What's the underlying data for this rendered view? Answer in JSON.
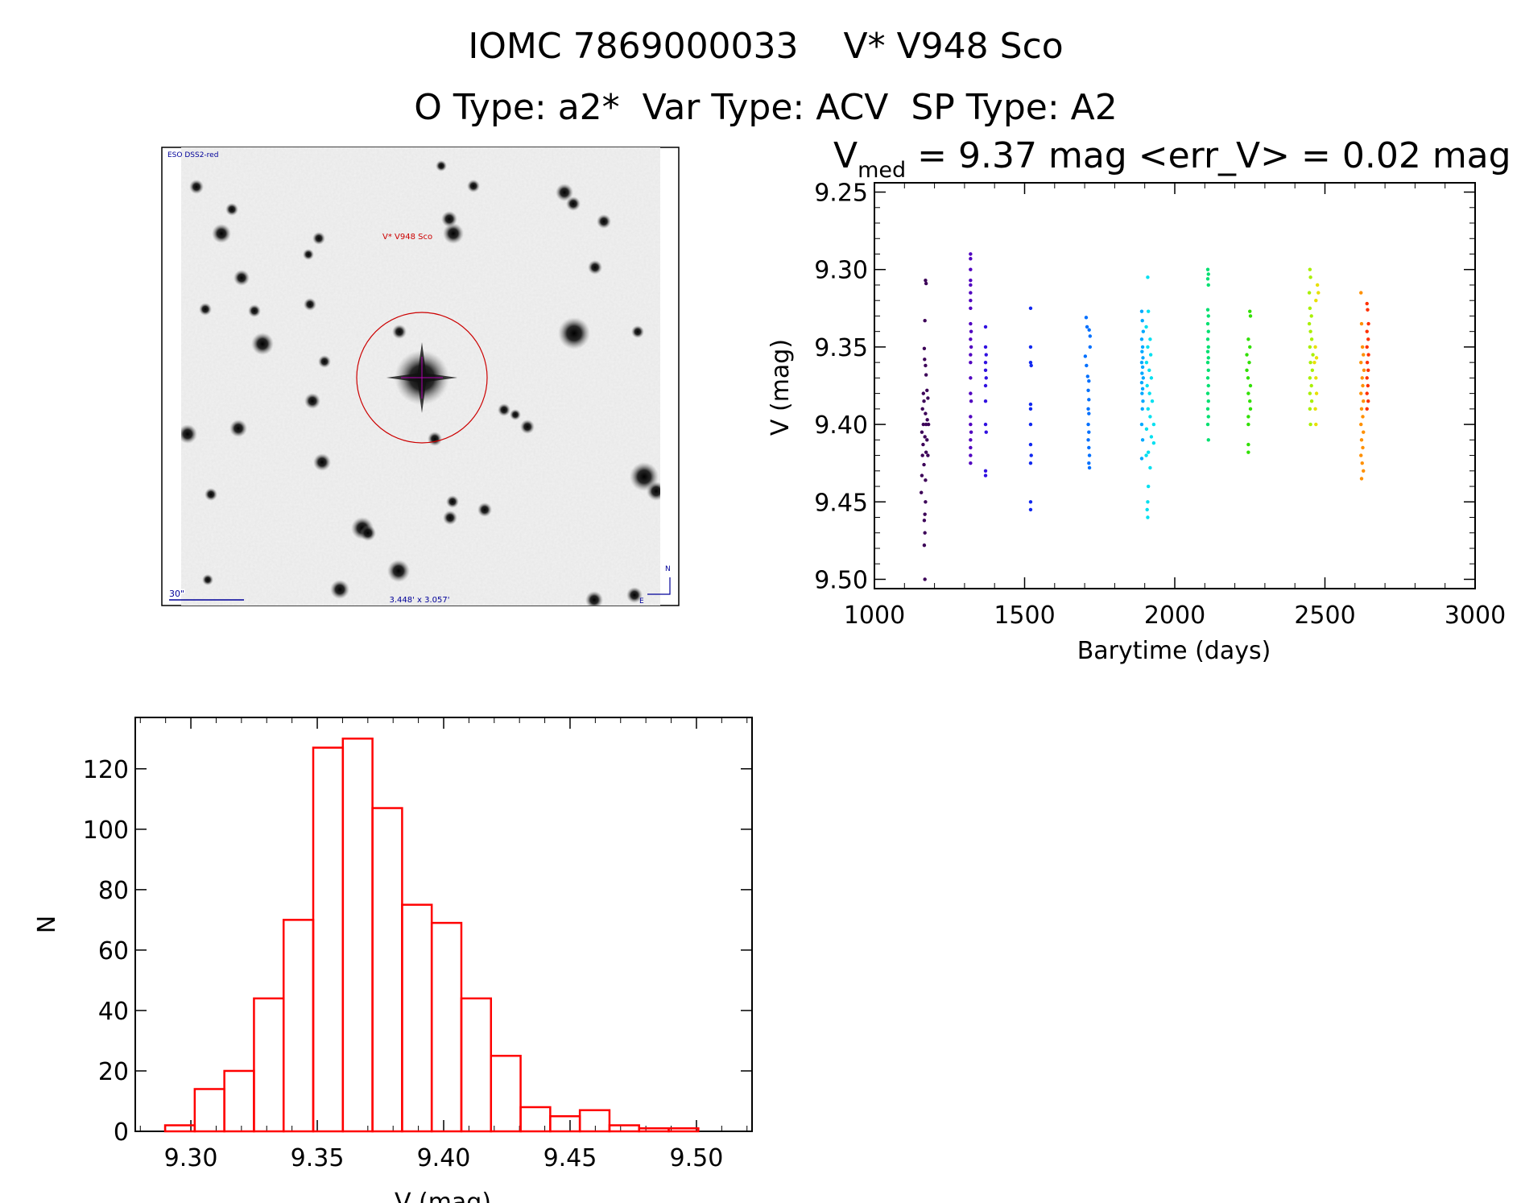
{
  "header": {
    "title_line1": "IOMC 7869000033    V* V948 Sco",
    "title_line2": "O Type: a2*  Var Type: ACV  SP Type: A2"
  },
  "image_panel": {
    "survey_label": "ESO DSS2-red",
    "target_label": "V* V948 Sco",
    "scale_label": "30\"",
    "size_label": "3.448' x 3.057'",
    "north_label": "N",
    "east_label": "E",
    "marker_color": "#cc0000",
    "label_color": "#000099"
  },
  "chart_data": [
    {
      "type": "scatter",
      "title_main": "V",
      "title_sub": "med",
      "title_rest": " = 9.37 mag <err_V> = 0.02 mag",
      "xlabel": "Barytime (days)",
      "ylabel": "V (mag)",
      "xlim": [
        1000,
        3000
      ],
      "ylim": [
        9.244,
        9.506
      ],
      "y_reversed": true,
      "xticks": [
        "1000",
        "1500",
        "2000",
        "2500",
        "3000"
      ],
      "yticks": [
        "9.25",
        "9.30",
        "9.35",
        "9.40",
        "9.45",
        "9.50"
      ],
      "series": [
        {
          "color": "#3c0058",
          "points": [
            [
              1170,
              9.307
            ],
            [
              1172,
              9.309
            ],
            [
              1168,
              9.333
            ],
            [
              1166,
              9.351
            ],
            [
              1167,
              9.358
            ],
            [
              1170,
              9.362
            ],
            [
              1172,
              9.368
            ],
            [
              1163,
              9.38
            ],
            [
              1175,
              9.378
            ],
            [
              1165,
              9.385
            ],
            [
              1178,
              9.383
            ],
            [
              1160,
              9.39
            ],
            [
              1170,
              9.393
            ],
            [
              1176,
              9.397
            ],
            [
              1163,
              9.4
            ],
            [
              1172,
              9.4
            ],
            [
              1180,
              9.4
            ],
            [
              1158,
              9.405
            ],
            [
              1168,
              9.408
            ],
            [
              1175,
              9.41
            ],
            [
              1162,
              9.413
            ],
            [
              1172,
              9.418
            ],
            [
              1160,
              9.42
            ],
            [
              1178,
              9.42
            ],
            [
              1165,
              9.426
            ],
            [
              1158,
              9.433
            ],
            [
              1170,
              9.436
            ],
            [
              1156,
              9.444
            ],
            [
              1170,
              9.45
            ],
            [
              1168,
              9.458
            ],
            [
              1166,
              9.462
            ],
            [
              1168,
              9.47
            ],
            [
              1166,
              9.478
            ],
            [
              1168,
              9.5
            ]
          ]
        },
        {
          "color": "#5000c0",
          "points": [
            [
              1320,
              9.29
            ],
            [
              1320,
              9.293
            ],
            [
              1320,
              9.3
            ],
            [
              1320,
              9.307
            ],
            [
              1320,
              9.31
            ],
            [
              1320,
              9.315
            ],
            [
              1320,
              9.32
            ],
            [
              1320,
              9.325
            ],
            [
              1320,
              9.335
            ],
            [
              1322,
              9.34
            ],
            [
              1320,
              9.345
            ],
            [
              1322,
              9.35
            ],
            [
              1320,
              9.355
            ],
            [
              1320,
              9.36
            ],
            [
              1320,
              9.37
            ],
            [
              1320,
              9.38
            ],
            [
              1322,
              9.385
            ],
            [
              1320,
              9.395
            ],
            [
              1320,
              9.4
            ],
            [
              1322,
              9.405
            ],
            [
              1320,
              9.41
            ],
            [
              1320,
              9.415
            ],
            [
              1320,
              9.42
            ],
            [
              1320,
              9.425
            ]
          ]
        },
        {
          "color": "#3010e0",
          "points": [
            [
              1370,
              9.337
            ],
            [
              1370,
              9.35
            ],
            [
              1372,
              9.355
            ],
            [
              1370,
              9.36
            ],
            [
              1370,
              9.365
            ],
            [
              1372,
              9.37
            ],
            [
              1370,
              9.375
            ],
            [
              1370,
              9.385
            ],
            [
              1370,
              9.4
            ],
            [
              1372,
              9.405
            ],
            [
              1370,
              9.43
            ],
            [
              1370,
              9.433
            ]
          ]
        },
        {
          "color": "#1028f0",
          "points": [
            [
              1520,
              9.325
            ],
            [
              1520,
              9.35
            ],
            [
              1520,
              9.36
            ],
            [
              1522,
              9.362
            ],
            [
              1520,
              9.387
            ],
            [
              1520,
              9.39
            ],
            [
              1520,
              9.4
            ],
            [
              1520,
              9.413
            ],
            [
              1522,
              9.42
            ],
            [
              1520,
              9.425
            ],
            [
              1520,
              9.45
            ],
            [
              1520,
              9.455
            ]
          ]
        },
        {
          "color": "#0070ff",
          "points": [
            [
              1705,
              9.331
            ],
            [
              1708,
              9.337
            ],
            [
              1715,
              9.339
            ],
            [
              1718,
              9.343
            ],
            [
              1702,
              9.356
            ],
            [
              1718,
              9.35
            ],
            [
              1706,
              9.362
            ],
            [
              1710,
              9.369
            ],
            [
              1714,
              9.372
            ],
            [
              1712,
              9.378
            ],
            [
              1714,
              9.384
            ],
            [
              1712,
              9.39
            ],
            [
              1714,
              9.393
            ],
            [
              1712,
              9.4
            ],
            [
              1714,
              9.405
            ],
            [
              1712,
              9.41
            ],
            [
              1714,
              9.415
            ],
            [
              1716,
              9.42
            ],
            [
              1714,
              9.425
            ],
            [
              1716,
              9.428
            ]
          ]
        },
        {
          "color": "#00a8ff",
          "points": [
            [
              1890,
              9.327
            ],
            [
              1892,
              9.333
            ],
            [
              1895,
              9.34
            ],
            [
              1890,
              9.345
            ],
            [
              1893,
              9.35
            ],
            [
              1891,
              9.353
            ],
            [
              1894,
              9.357
            ],
            [
              1890,
              9.36
            ],
            [
              1893,
              9.363
            ],
            [
              1891,
              9.367
            ],
            [
              1895,
              9.37
            ],
            [
              1890,
              9.373
            ],
            [
              1893,
              9.377
            ],
            [
              1891,
              9.38
            ],
            [
              1894,
              9.385
            ],
            [
              1892,
              9.39
            ],
            [
              1890,
              9.4
            ],
            [
              1893,
              9.41
            ],
            [
              1890,
              9.422
            ]
          ]
        },
        {
          "color": "#00e0f0",
          "points": [
            [
              1910,
              9.305
            ],
            [
              1912,
              9.327
            ],
            [
              1905,
              9.337
            ],
            [
              1918,
              9.345
            ],
            [
              1910,
              9.35
            ],
            [
              1920,
              9.355
            ],
            [
              1906,
              9.36
            ],
            [
              1915,
              9.365
            ],
            [
              1922,
              9.37
            ],
            [
              1908,
              9.375
            ],
            [
              1916,
              9.38
            ],
            [
              1925,
              9.385
            ],
            [
              1911,
              9.39
            ],
            [
              1918,
              9.395
            ],
            [
              1930,
              9.4
            ],
            [
              1906,
              9.403
            ],
            [
              1922,
              9.408
            ],
            [
              1930,
              9.412
            ],
            [
              1912,
              9.418
            ],
            [
              1905,
              9.42
            ],
            [
              1918,
              9.428
            ],
            [
              1912,
              9.44
            ],
            [
              1910,
              9.45
            ],
            [
              1908,
              9.455
            ],
            [
              1910,
              9.46
            ]
          ]
        },
        {
          "color": "#00e070",
          "points": [
            [
              2110,
              9.3
            ],
            [
              2112,
              9.303
            ],
            [
              2110,
              9.306
            ],
            [
              2112,
              9.31
            ],
            [
              2110,
              9.326
            ],
            [
              2112,
              9.33
            ],
            [
              2110,
              9.335
            ],
            [
              2112,
              9.34
            ],
            [
              2110,
              9.345
            ],
            [
              2112,
              9.35
            ],
            [
              2110,
              9.353
            ],
            [
              2112,
              9.357
            ],
            [
              2110,
              9.36
            ],
            [
              2112,
              9.365
            ],
            [
              2110,
              9.37
            ],
            [
              2112,
              9.375
            ],
            [
              2110,
              9.38
            ],
            [
              2112,
              9.385
            ],
            [
              2110,
              9.39
            ],
            [
              2112,
              9.395
            ],
            [
              2110,
              9.4
            ],
            [
              2112,
              9.41
            ]
          ]
        },
        {
          "color": "#30e000",
          "points": [
            [
              2250,
              9.327
            ],
            [
              2252,
              9.33
            ],
            [
              2245,
              9.345
            ],
            [
              2250,
              9.35
            ],
            [
              2240,
              9.355
            ],
            [
              2248,
              9.36
            ],
            [
              2240,
              9.365
            ],
            [
              2244,
              9.37
            ],
            [
              2252,
              9.375
            ],
            [
              2245,
              9.38
            ],
            [
              2250,
              9.385
            ],
            [
              2252,
              9.39
            ],
            [
              2245,
              9.395
            ],
            [
              2245,
              9.4
            ],
            [
              2245,
              9.413
            ],
            [
              2245,
              9.418
            ]
          ]
        },
        {
          "color": "#a8f000",
          "points": [
            [
              2450,
              9.3
            ],
            [
              2452,
              9.305
            ],
            [
              2448,
              9.315
            ],
            [
              2450,
              9.325
            ],
            [
              2455,
              9.33
            ],
            [
              2448,
              9.335
            ],
            [
              2452,
              9.34
            ],
            [
              2456,
              9.345
            ],
            [
              2450,
              9.35
            ],
            [
              2460,
              9.355
            ],
            [
              2452,
              9.36
            ],
            [
              2458,
              9.365
            ],
            [
              2450,
              9.37
            ],
            [
              2455,
              9.375
            ],
            [
              2450,
              9.38
            ],
            [
              2456,
              9.385
            ],
            [
              2450,
              9.39
            ],
            [
              2452,
              9.4
            ]
          ]
        },
        {
          "color": "#e8e000",
          "points": [
            [
              2475,
              9.31
            ],
            [
              2478,
              9.315
            ],
            [
              2470,
              9.32
            ],
            [
              2468,
              9.35
            ],
            [
              2472,
              9.357
            ],
            [
              2465,
              9.36
            ],
            [
              2470,
              9.37
            ],
            [
              2472,
              9.38
            ],
            [
              2468,
              9.39
            ],
            [
              2470,
              9.4
            ]
          ]
        },
        {
          "color": "#ff9000",
          "points": [
            [
              2620,
              9.315
            ],
            [
              2622,
              9.335
            ],
            [
              2625,
              9.35
            ],
            [
              2628,
              9.355
            ],
            [
              2620,
              9.36
            ],
            [
              2630,
              9.365
            ],
            [
              2624,
              9.37
            ],
            [
              2626,
              9.375
            ],
            [
              2620,
              9.38
            ],
            [
              2628,
              9.385
            ],
            [
              2622,
              9.39
            ],
            [
              2626,
              9.395
            ],
            [
              2620,
              9.4
            ],
            [
              2628,
              9.405
            ],
            [
              2622,
              9.41
            ],
            [
              2626,
              9.415
            ],
            [
              2620,
              9.42
            ],
            [
              2624,
              9.425
            ],
            [
              2628,
              9.43
            ],
            [
              2622,
              9.435
            ]
          ]
        },
        {
          "color": "#ff3000",
          "points": [
            [
              2640,
              9.322
            ],
            [
              2642,
              9.326
            ],
            [
              2645,
              9.335
            ],
            [
              2640,
              9.34
            ],
            [
              2644,
              9.345
            ],
            [
              2640,
              9.35
            ],
            [
              2645,
              9.355
            ],
            [
              2641,
              9.36
            ],
            [
              2644,
              9.365
            ],
            [
              2640,
              9.37
            ],
            [
              2643,
              9.375
            ],
            [
              2640,
              9.38
            ],
            [
              2644,
              9.385
            ],
            [
              2640,
              9.39
            ]
          ]
        }
      ]
    },
    {
      "type": "bar",
      "xlabel": "V (mag)",
      "ylabel": "N",
      "xlim": [
        9.278,
        9.522
      ],
      "ylim": [
        0,
        137
      ],
      "xticks": [
        "9.30",
        "9.35",
        "9.40",
        "9.45",
        "9.50"
      ],
      "yticks": [
        "0",
        "20",
        "40",
        "60",
        "80",
        "100",
        "120"
      ],
      "bar_color": "#ff0000",
      "bin_start": 9.2898,
      "bin_width": 0.01172,
      "values": [
        2,
        14,
        20,
        44,
        70,
        127,
        130,
        107,
        75,
        69,
        44,
        25,
        8,
        5,
        7,
        2,
        1,
        1
      ]
    }
  ]
}
